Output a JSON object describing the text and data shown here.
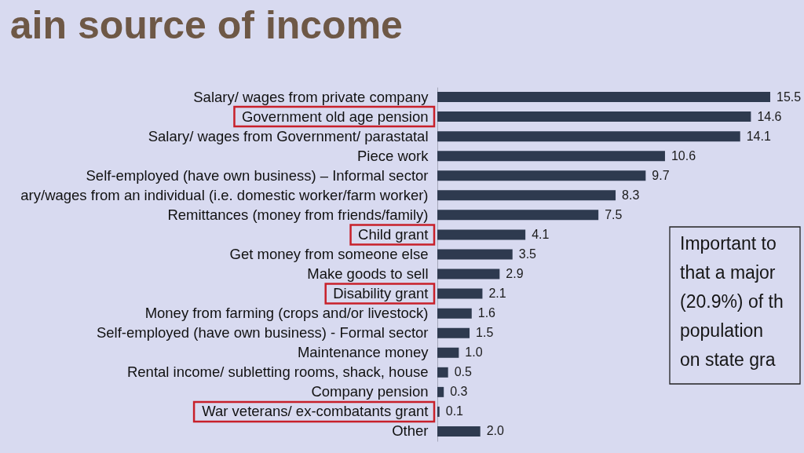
{
  "chart_data": {
    "type": "bar",
    "orientation": "horizontal",
    "title": "ain source of income",
    "categories": [
      "Salary/ wages from private company",
      "Government old age pension",
      "Salary/ wages from Government/ parastatal",
      "Piece work",
      "Self-employed (have own business) – Informal sector",
      "ary/wages from an individual (i.e. domestic worker/farm worker)",
      "Remittances (money from friends/family)",
      "Child grant",
      "Get money from someone else",
      "Make goods to sell",
      "Disability grant",
      "Money from farming (crops and/or livestock)",
      "Self-employed (have own business) - Formal sector",
      "Maintenance money",
      "Rental income/ subletting rooms, shack, house",
      "Company pension",
      "War veterans/ ex-combatants grant",
      "Other"
    ],
    "values": [
      15.5,
      14.6,
      14.1,
      10.6,
      9.7,
      8.3,
      7.5,
      4.1,
      3.5,
      2.9,
      2.1,
      1.6,
      1.5,
      1.0,
      0.5,
      0.3,
      0.1,
      2.0
    ],
    "value_labels": [
      "15.5",
      "14.6",
      "14.1",
      "10.6",
      "9.7",
      "8.3",
      "7.5",
      "4.1",
      "3.5",
      "2.9",
      "2.1",
      "1.6",
      "1.5",
      "1.0",
      "0.5",
      "0.3",
      "0.1",
      "2.0"
    ],
    "color": "#2e3a4f",
    "annotations": [
      "Important to\nthat a major\n(20.9%) of th\npopulation\non state gra"
    ]
  }
}
